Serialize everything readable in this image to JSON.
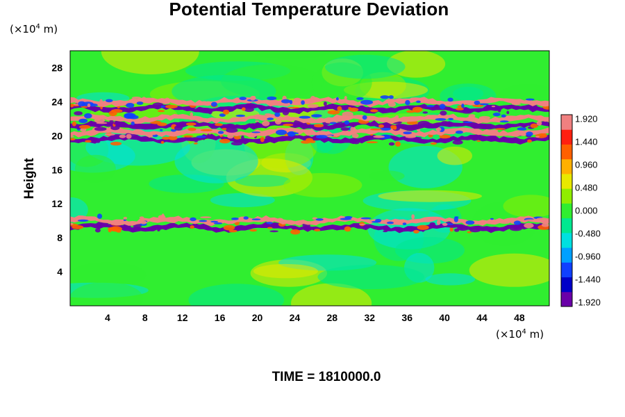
{
  "chart_data": {
    "type": "heatmap",
    "title": "Potential Temperature Deviation",
    "ylabel": "Height",
    "x_unit": {
      "prefix": "(×10",
      "exp": "4",
      "suffix": " m)"
    },
    "y_unit": {
      "prefix": "(×10",
      "exp": "4",
      "suffix": " m)"
    },
    "xlim": [
      0,
      51.2
    ],
    "ylim": [
      0,
      30
    ],
    "x_ticks": [
      4,
      8,
      12,
      16,
      20,
      24,
      28,
      32,
      36,
      40,
      44,
      48
    ],
    "y_ticks": [
      4,
      8,
      12,
      16,
      20,
      24,
      28
    ],
    "colorbar": {
      "min": -1.92,
      "max": 1.92,
      "labels": [
        "1.920",
        "1.440",
        "0.960",
        "0.480",
        "0.000",
        "-0.480",
        "-0.960",
        "-1.440",
        "-1.920"
      ],
      "colors": [
        "#6a00a8",
        "#0000c8",
        "#1040ff",
        "#00a0ff",
        "#00e0e0",
        "#00e890",
        "#30ee30",
        "#90ee00",
        "#e8e800",
        "#ffb000",
        "#ff6000",
        "#ff2010",
        "#f08080"
      ]
    },
    "bands": [
      {
        "y": 9.2,
        "value": -1.9,
        "note": "negative layer near 9"
      },
      {
        "y": 10.0,
        "value": 1.9,
        "note": "positive layer near 10"
      },
      {
        "y": 19.6,
        "value": -1.9,
        "note": "negative layer near 19.5"
      },
      {
        "y": 20.4,
        "value": 1.9,
        "note": "positive layer near 20.5"
      },
      {
        "y": 21.2,
        "value": -1.9,
        "note": "negative layer near 21"
      },
      {
        "y": 22.0,
        "value": 1.9,
        "note": "positive layer near 22"
      },
      {
        "y": 23.2,
        "value": -1.9,
        "note": "negative layer near 23"
      },
      {
        "y": 24.0,
        "value": 1.9,
        "note": "positive layer near 24"
      }
    ]
  },
  "time_label": "TIME = 1810000.0"
}
